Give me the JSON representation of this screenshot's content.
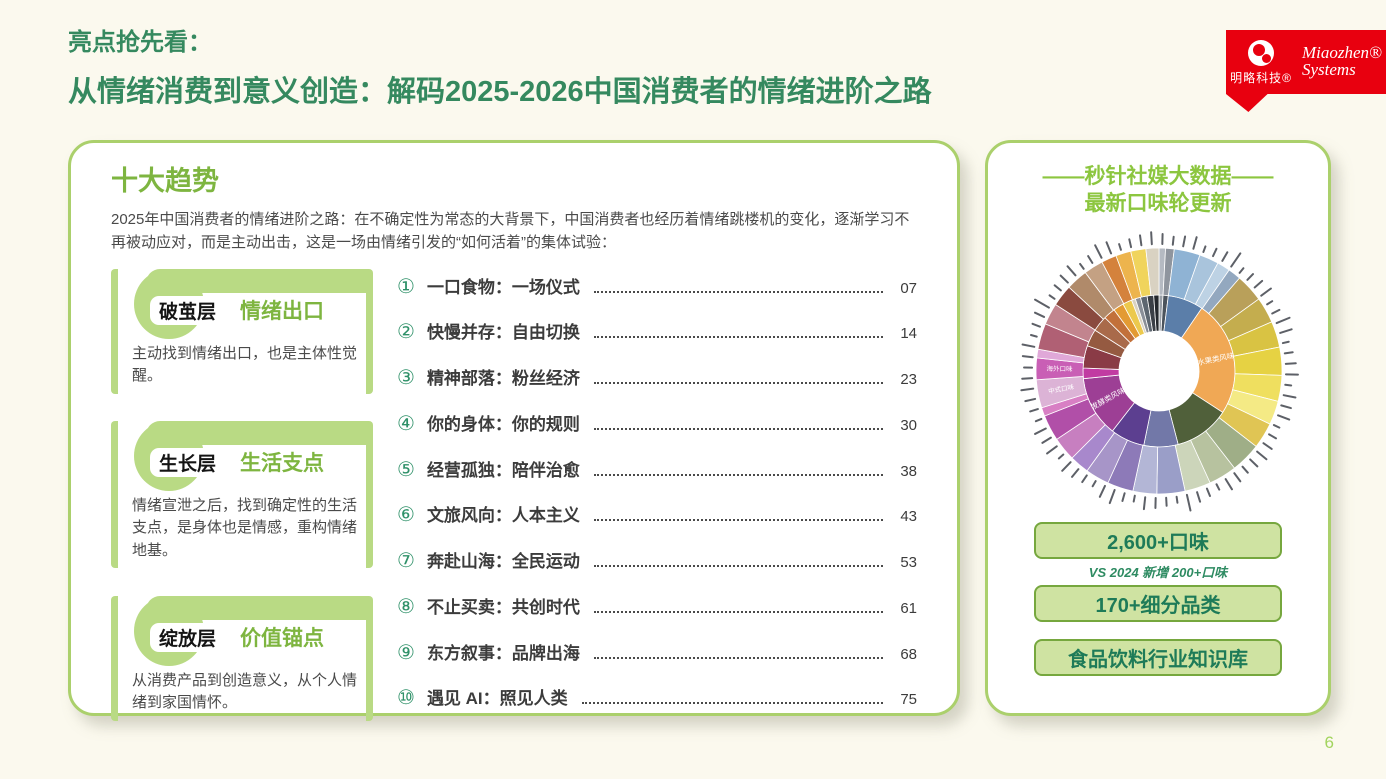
{
  "header": {
    "kicker": "亮点抢先看：",
    "title": "从情绪消费到意义创造：解码2025-2026中国消费者的情绪进阶之路"
  },
  "logo": {
    "zh_label": "明略科技®",
    "en_line1": "Miaozhen®",
    "en_line2": "Systems"
  },
  "left_panel": {
    "heading": "十大趋势",
    "intro": "2025年中国消费者的情绪进阶之路：在不确定性为常态的大背景下，中国消费者也经历着情绪跳楼机的变化，逐渐学习不再被动应对，而是主动出击，这是一场由情绪引发的“如何活着”的集体试验："
  },
  "cards": [
    {
      "tag": "破茧层",
      "subtitle": "情绪出口",
      "desc": "主动找到情绪出口，也是主体性觉醒。"
    },
    {
      "tag": "生长层",
      "subtitle": "生活支点",
      "desc": "情绪宣泄之后，找到确定性的生活支点，是身体也是情感，重构情绪地基。"
    },
    {
      "tag": "绽放层",
      "subtitle": "价值锚点",
      "desc": "从消费产品到创造意义，从个人情绪到家国情怀。"
    }
  ],
  "toc": {
    "items": [
      {
        "num": "①",
        "title": "一口食物：一场仪式",
        "page": "07"
      },
      {
        "num": "②",
        "title": "快慢并存：自由切换",
        "page": "14"
      },
      {
        "num": "③",
        "title": "精神部落：粉丝经济",
        "page": "23"
      },
      {
        "num": "④",
        "title": "你的身体：你的规则",
        "page": "30"
      },
      {
        "num": "⑤",
        "title": "经营孤独：陪伴治愈",
        "page": "38"
      },
      {
        "num": "⑥",
        "title": "文旅风向：人本主义",
        "page": "43"
      },
      {
        "num": "⑦",
        "title": "奔赴山海：全民运动",
        "page": "53"
      },
      {
        "num": "⑧",
        "title": "不止买卖：共创时代",
        "page": "61"
      },
      {
        "num": "⑨",
        "title": "东方叙事：品牌出海",
        "page": "68"
      },
      {
        "num": "⑩",
        "title": "遇见 AI：照见人类",
        "page": "75"
      }
    ]
  },
  "right_panel": {
    "heading_line1": "——秒针社媒大数据——",
    "heading_line2": "最新口味轮更新",
    "badges": [
      "2,600+口味",
      "170+细分品类",
      "食品饮料行业知识库"
    ],
    "note": "VS 2024 新增 200+口味"
  },
  "page_number": "6",
  "colors": {
    "accent_green_dark": "#35895f",
    "accent_green_light": "#8cc63f",
    "panel_border": "#abd06c",
    "card_green": "#b9da84",
    "badge_fill": "#cfe3a2",
    "badge_border": "#76a73e",
    "badge_text": "#1e7b58",
    "logo_red": "#e8000f"
  },
  "chart_data": {
    "type": "sunburst",
    "title": "秒针社媒大数据最新口味轮",
    "rings": 2,
    "center_hole": true,
    "rim_tick_count": 76,
    "readable_segment_labels": [
      "水果类风味",
      "发酵类风味",
      "中式口味",
      "海外口味"
    ],
    "inner_ring": [
      {
        "label": "",
        "color": "#9aa0a8",
        "sweep": 3
      },
      {
        "label": "",
        "color": "#4b535c",
        "sweep": 4
      },
      {
        "label": "",
        "color": "#5b7ea9",
        "sweep": 27
      },
      {
        "label": "水果类风味",
        "color": "#f0a855",
        "sweep": 88
      },
      {
        "label": "",
        "color": "#50603a",
        "sweep": 42
      },
      {
        "label": "",
        "color": "#7278a8",
        "sweep": 26
      },
      {
        "label": "",
        "color": "#5c3f90",
        "sweep": 26
      },
      {
        "label": "发酵类风味",
        "color": "#9d3f95",
        "sweep": 46
      },
      {
        "label": "",
        "color": "#c13ba2",
        "sweep": 8
      },
      {
        "label": "",
        "color": "#8a3b46",
        "sweep": 17
      },
      {
        "label": "",
        "color": "#955a41",
        "sweep": 13
      },
      {
        "label": "",
        "color": "#a96a4a",
        "sweep": 12
      },
      {
        "label": "",
        "color": "#c2703a",
        "sweep": 9
      },
      {
        "label": "",
        "color": "#e39a33",
        "sweep": 8
      },
      {
        "label": "",
        "color": "#ecc94d",
        "sweep": 7
      },
      {
        "label": "",
        "color": "#d9d2c2",
        "sweep": 3
      },
      {
        "label": "",
        "color": "#8a8f98",
        "sweep": 4
      },
      {
        "label": "",
        "color": "#5d6670",
        "sweep": 5
      },
      {
        "label": "",
        "color": "#3a3f46",
        "sweep": 5
      },
      {
        "label": "",
        "color": "#23272c",
        "sweep": 4
      }
    ],
    "outer_ring": [
      {
        "label": "",
        "color": "#b5bac2",
        "sweep": 3
      },
      {
        "label": "",
        "color": "#8f959e",
        "sweep": 4
      },
      {
        "label": "",
        "color": "#8fb3d4",
        "sweep": 12
      },
      {
        "label": "",
        "color": "#a9c4dc",
        "sweep": 9
      },
      {
        "label": "",
        "color": "#bdd2e4",
        "sweep": 6
      },
      {
        "label": "",
        "color": "#93a8bf",
        "sweep": 6
      },
      {
        "label": "",
        "color": "#b9a05a",
        "sweep": 13
      },
      {
        "label": "",
        "color": "#c4ad4e",
        "sweep": 12
      },
      {
        "label": "",
        "color": "#d9c343",
        "sweep": 12
      },
      {
        "label": "",
        "color": "#e6d243",
        "sweep": 13
      },
      {
        "label": "",
        "color": "#efdf5f",
        "sweep": 12
      },
      {
        "label": "",
        "color": "#f4ea85",
        "sweep": 11
      },
      {
        "label": "",
        "color": "#e0c554",
        "sweep": 12
      },
      {
        "label": "",
        "color": "#9fae87",
        "sweep": 14
      },
      {
        "label": "",
        "color": "#b7c29f",
        "sweep": 13
      },
      {
        "label": "",
        "color": "#ccd5ba",
        "sweep": 12
      },
      {
        "label": "",
        "color": "#9a9ec8",
        "sweep": 13
      },
      {
        "label": "",
        "color": "#b3b6d6",
        "sweep": 11
      },
      {
        "label": "",
        "color": "#8d7ab8",
        "sweep": 12
      },
      {
        "label": "",
        "color": "#a795c8",
        "sweep": 11
      },
      {
        "label": "",
        "color": "#a888cc",
        "sweep": 9
      },
      {
        "label": "",
        "color": "#c77fc0",
        "sweep": 11
      },
      {
        "label": "",
        "color": "#b14fa8",
        "sweep": 12
      },
      {
        "label": "",
        "color": "#d87fc4",
        "sweep": 4
      },
      {
        "label": "中式口味",
        "color": "#dcb3d6",
        "sweep": 13
      },
      {
        "label": "海外口味",
        "color": "#c95fb5",
        "sweep": 10
      },
      {
        "label": "",
        "color": "#e0a8d8",
        "sweep": 4
      },
      {
        "label": "",
        "color": "#b06074",
        "sweep": 12
      },
      {
        "label": "",
        "color": "#c2848e",
        "sweep": 10
      },
      {
        "label": "",
        "color": "#8a4a3f",
        "sweep": 10
      },
      {
        "label": "",
        "color": "#b08a6a",
        "sweep": 10
      },
      {
        "label": "",
        "color": "#c4a183",
        "sweep": 9
      },
      {
        "label": "",
        "color": "#d4823c",
        "sweep": 7
      },
      {
        "label": "",
        "color": "#edb44d",
        "sweep": 7
      },
      {
        "label": "",
        "color": "#f0d45c",
        "sweep": 7
      },
      {
        "label": "",
        "color": "#d9d2c2",
        "sweep": 6
      }
    ]
  }
}
